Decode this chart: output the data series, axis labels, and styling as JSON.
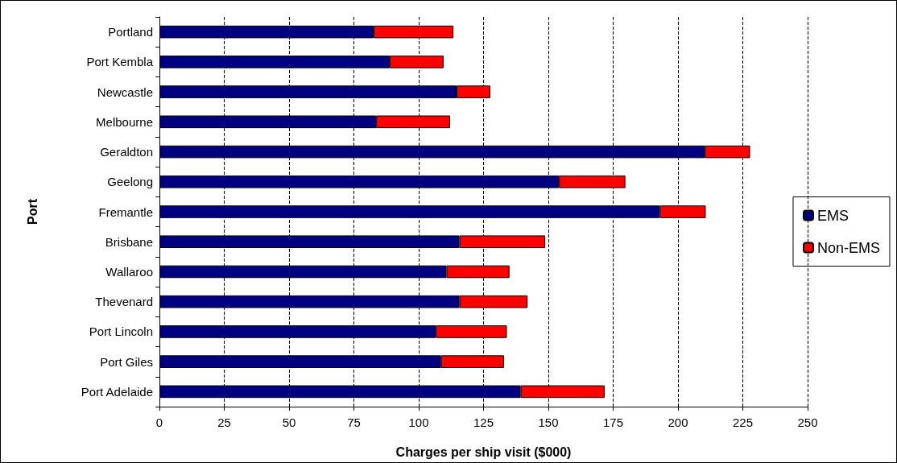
{
  "chart_data": {
    "type": "bar",
    "orientation": "horizontal",
    "stacked": true,
    "xlabel": "Charges per ship visit ($000)",
    "ylabel": "Port",
    "categories": [
      "Portland",
      "Port Kembla",
      "Newcastle",
      "Melbourne",
      "Geraldton",
      "Geelong",
      "Fremantle",
      "Brisbane",
      "Wallaroo",
      "Thevenard",
      "Port Lincoln",
      "Port Giles",
      "Port Adelaide"
    ],
    "series": [
      {
        "name": "EMS",
        "color": "#000080",
        "values": [
          82.6,
          88.8,
          114.6,
          83.6,
          210.3,
          154.1,
          193,
          115.7,
          110.7,
          115.7,
          106.6,
          108.6,
          139.3
        ]
      },
      {
        "name": "Non-EMS",
        "color": "#ff0000",
        "values": [
          30.8,
          20.8,
          13,
          28.5,
          17.5,
          25.6,
          17.7,
          33.1,
          24.3,
          26.3,
          27.4,
          24.3,
          32.4
        ]
      }
    ],
    "xlim": [
      0,
      250
    ],
    "xticks": [
      0,
      25,
      50,
      75,
      100,
      125,
      150,
      175,
      200,
      225,
      250
    ],
    "grid": "x",
    "legend": "right"
  }
}
